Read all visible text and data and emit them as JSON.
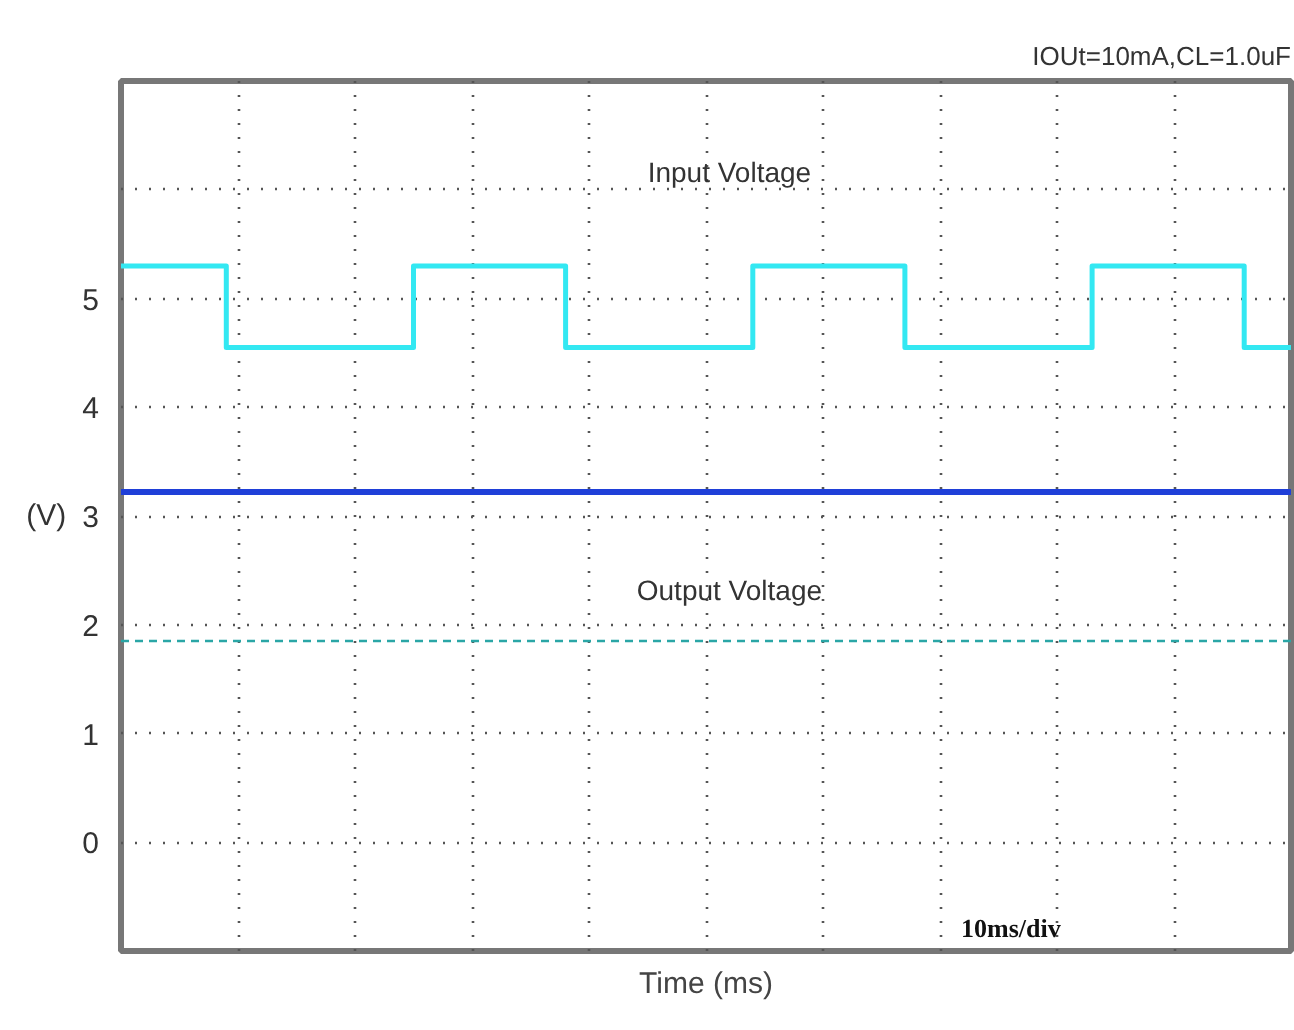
{
  "chart_data": {
    "type": "step",
    "title": "IOUt=10mA,CL=1.0uF",
    "xlabel": "Time (ms)",
    "ylabel": "(V)",
    "categories": [
      null,
      null,
      null,
      null,
      null,
      null,
      null,
      null,
      null,
      null,
      null,
      null,
      null,
      null,
      null,
      null,
      null,
      null,
      null,
      null,
      null,
      null,
      null,
      null,
      null,
      null,
      null,
      null,
      null,
      null,
      null,
      null,
      null,
      null,
      null,
      null,
      null,
      null,
      null,
      null,
      null,
      null,
      null,
      null,
      null,
      null,
      null,
      null,
      null,
      null,
      null,
      null,
      null,
      null,
      null,
      null,
      null,
      null,
      null,
      null,
      null,
      null,
      null,
      null,
      null,
      null,
      null,
      null,
      null,
      null,
      null,
      null,
      null,
      null,
      null,
      null,
      null,
      null,
      null,
      null,
      null,
      null,
      null,
      null,
      null,
      null,
      null,
      null,
      null,
      null,
      null,
      null,
      null,
      null,
      null,
      null,
      null,
      null,
      null,
      null,
      null
    ],
    "ylim": [
      -1,
      7
    ],
    "yticks": [
      {
        "value": -1,
        "label": null
      },
      0,
      1,
      2,
      3,
      4,
      5,
      {
        "value": 6,
        "label": null
      },
      {
        "value": 7,
        "label": null
      }
    ],
    "tick_labels": "y",
    "grid": true,
    "series": [
      {
        "color": "#33e8f2",
        "values": [
          5.3,
          5.3,
          5.3,
          5.3,
          5.3,
          5.3,
          5.3,
          5.3,
          5.3,
          4.55,
          4.55,
          4.55,
          4.55,
          4.55,
          4.55,
          4.55,
          4.55,
          4.55,
          4.55,
          4.55,
          4.55,
          4.55,
          4.55,
          4.55,
          4.55,
          5.3,
          5.3,
          5.3,
          5.3,
          5.3,
          5.3,
          5.3,
          5.3,
          5.3,
          5.3,
          5.3,
          5.3,
          5.3,
          4.55,
          4.55,
          4.55,
          4.55,
          4.55,
          4.55,
          4.55,
          4.55,
          4.55,
          4.55,
          4.55,
          4.55,
          4.55,
          4.55,
          4.55,
          4.55,
          5.3,
          5.3,
          5.3,
          5.3,
          5.3,
          5.3,
          5.3,
          5.3,
          5.3,
          5.3,
          5.3,
          5.3,
          5.3,
          4.55,
          4.55,
          4.55,
          4.55,
          4.55,
          4.55,
          4.55,
          4.55,
          4.55,
          4.55,
          4.55,
          4.55,
          4.55,
          4.55,
          4.55,
          4.55,
          5.3,
          5.3,
          5.3,
          5.3,
          5.3,
          5.3,
          5.3,
          5.3,
          5.3,
          5.3,
          5.3,
          5.3,
          5.3,
          4.55,
          4.55,
          4.55,
          4.55,
          4.55
        ]
      },
      {
        "type": "line",
        "color": "#1f3fd8",
        "values": [
          3.22,
          3.22,
          3.22,
          3.22,
          3.22,
          3.22,
          3.22,
          3.22,
          3.22,
          3.22,
          3.22,
          3.22,
          3.22,
          3.22,
          3.22,
          3.22,
          3.22,
          3.22,
          3.22,
          3.22,
          3.22,
          3.22,
          3.22,
          3.22,
          3.22,
          3.22,
          3.22,
          3.22,
          3.22,
          3.22,
          3.22,
          3.22,
          3.22,
          3.22,
          3.22,
          3.22,
          3.22,
          3.22,
          3.22,
          3.22,
          3.22,
          3.22,
          3.22,
          3.22,
          3.22,
          3.22,
          3.22,
          3.22,
          3.22,
          3.22,
          3.22,
          3.22,
          3.22,
          3.22,
          3.22,
          3.22,
          3.22,
          3.22,
          3.22,
          3.22,
          3.22,
          3.22,
          3.22,
          3.22,
          3.22,
          3.22,
          3.22,
          3.22,
          3.22,
          3.22,
          3.22,
          3.22,
          3.22,
          3.22,
          3.22,
          3.22,
          3.22,
          3.22,
          3.22,
          3.22,
          3.22,
          3.22,
          3.22,
          3.22,
          3.22,
          3.22,
          3.22,
          3.22,
          3.22,
          3.22,
          3.22,
          3.22,
          3.22,
          3.22,
          3.22,
          3.22,
          3.22,
          3.22,
          3.22,
          3.22,
          3.22
        ]
      }
    ],
    "ref_lines": [
      {
        "axis": "y",
        "value": 1.85,
        "color": "#2aa6a6",
        "line_style": "dashed"
      }
    ],
    "annotations": [
      "Input Voltage",
      "Output Voltage",
      "10ms/div"
    ]
  }
}
